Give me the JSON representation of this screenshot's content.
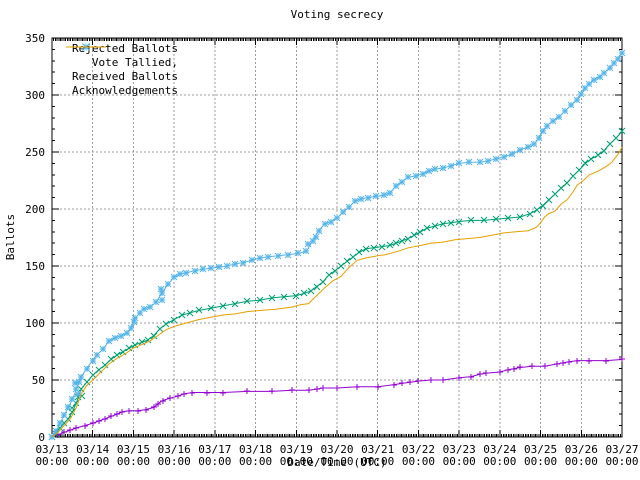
{
  "title": "Voting secrecy",
  "axes": {
    "ylabel": "Ballots",
    "xlabel": "Date/Time (UTC)",
    "x_tick_time": "00:00"
  },
  "colors": {
    "background": "#ffffff",
    "axis": "#000000",
    "grid": "#9e9e9e",
    "rejected": "#9400D3",
    "tallied": "#009E73",
    "received": "#56B4E9",
    "acknowledgements": "#E69F00"
  },
  "chart_data": {
    "type": "line",
    "title": "Voting secrecy",
    "xlabel": "Date/Time (UTC)",
    "ylabel": "Ballots",
    "xlim": [
      0,
      14
    ],
    "ylim": [
      0,
      350
    ],
    "grid": true,
    "legend_position": "top-left",
    "y_ticks": [
      0,
      50,
      100,
      150,
      200,
      250,
      300,
      350
    ],
    "x_tick_dates": [
      "03/13",
      "03/14",
      "03/15",
      "03/16",
      "03/17",
      "03/18",
      "03/19",
      "03/20",
      "03/21",
      "03/22",
      "03/23",
      "03/24",
      "03/25",
      "03/26",
      "03/27"
    ],
    "x_tick_time": "00:00",
    "x_unit": "days since 03/13 00:00 UTC",
    "series": [
      {
        "name": "Rejected Ballots",
        "color": "#9400D3",
        "marker": "plus",
        "points": [
          [
            0,
            0
          ],
          [
            0.15,
            2
          ],
          [
            0.3,
            4
          ],
          [
            0.45,
            6
          ],
          [
            0.6,
            8
          ],
          [
            0.8,
            10
          ],
          [
            1,
            12
          ],
          [
            1.15,
            14
          ],
          [
            1.3,
            16
          ],
          [
            1.45,
            18
          ],
          [
            1.6,
            20
          ],
          [
            1.72,
            22
          ],
          [
            1.9,
            23
          ],
          [
            2.1,
            23
          ],
          [
            2.3,
            24
          ],
          [
            2.5,
            26
          ],
          [
            2.6,
            29
          ],
          [
            2.72,
            32
          ],
          [
            2.9,
            34
          ],
          [
            3.1,
            36
          ],
          [
            3.25,
            38
          ],
          [
            3.45,
            39
          ],
          [
            3.8,
            39
          ],
          [
            4.2,
            39
          ],
          [
            4.8,
            40
          ],
          [
            5.4,
            40
          ],
          [
            5.9,
            41
          ],
          [
            6.3,
            41
          ],
          [
            6.5,
            42
          ],
          [
            6.65,
            43
          ],
          [
            7,
            43
          ],
          [
            7.5,
            44
          ],
          [
            8,
            44
          ],
          [
            8.4,
            46
          ],
          [
            8.6,
            47
          ],
          [
            8.8,
            48
          ],
          [
            9,
            49
          ],
          [
            9.3,
            50
          ],
          [
            9.6,
            50
          ],
          [
            10,
            52
          ],
          [
            10.3,
            53
          ],
          [
            10.5,
            55
          ],
          [
            10.65,
            56
          ],
          [
            11,
            57
          ],
          [
            11.2,
            59
          ],
          [
            11.35,
            60
          ],
          [
            11.5,
            61
          ],
          [
            11.8,
            62
          ],
          [
            12.1,
            62
          ],
          [
            12.4,
            64
          ],
          [
            12.55,
            65
          ],
          [
            12.7,
            66
          ],
          [
            12.9,
            67
          ],
          [
            13.2,
            67
          ],
          [
            13.6,
            67
          ],
          [
            14,
            68
          ]
        ]
      },
      {
        "name": "Vote Tallied,",
        "color": "#009E73",
        "marker": "cross",
        "points": [
          [
            0,
            0
          ],
          [
            0.1,
            3
          ],
          [
            0.2,
            8
          ],
          [
            0.3,
            12
          ],
          [
            0.4,
            16
          ],
          [
            0.5,
            22
          ],
          [
            0.6,
            30
          ],
          [
            0.72,
            42
          ],
          [
            0.85,
            48
          ],
          [
            1,
            54
          ],
          [
            1.15,
            59
          ],
          [
            1.3,
            63
          ],
          [
            1.45,
            68
          ],
          [
            1.6,
            72
          ],
          [
            1.75,
            75
          ],
          [
            1.9,
            78
          ],
          [
            2.05,
            81
          ],
          [
            2.2,
            83
          ],
          [
            2.35,
            85
          ],
          [
            2.5,
            89
          ],
          [
            2.65,
            95
          ],
          [
            2.8,
            99
          ],
          [
            3,
            103
          ],
          [
            3.2,
            107
          ],
          [
            3.4,
            109
          ],
          [
            3.6,
            111
          ],
          [
            3.9,
            113
          ],
          [
            4.2,
            115
          ],
          [
            4.5,
            117
          ],
          [
            4.8,
            119
          ],
          [
            5.1,
            120
          ],
          [
            5.4,
            122
          ],
          [
            5.7,
            123
          ],
          [
            6,
            124
          ],
          [
            6.2,
            126
          ],
          [
            6.35,
            128
          ],
          [
            6.5,
            132
          ],
          [
            6.65,
            136
          ],
          [
            6.8,
            142
          ],
          [
            6.95,
            146
          ],
          [
            7.1,
            150
          ],
          [
            7.25,
            154
          ],
          [
            7.4,
            158
          ],
          [
            7.55,
            162
          ],
          [
            7.7,
            165
          ],
          [
            7.9,
            166
          ],
          [
            8.1,
            167
          ],
          [
            8.3,
            168
          ],
          [
            8.45,
            170
          ],
          [
            8.6,
            172
          ],
          [
            8.75,
            174
          ],
          [
            8.9,
            177
          ],
          [
            9.05,
            180
          ],
          [
            9.2,
            183
          ],
          [
            9.4,
            185
          ],
          [
            9.6,
            187
          ],
          [
            9.8,
            188
          ],
          [
            10,
            189
          ],
          [
            10.3,
            190
          ],
          [
            10.6,
            190
          ],
          [
            10.9,
            191
          ],
          [
            11.2,
            192
          ],
          [
            11.5,
            193
          ],
          [
            11.75,
            196
          ],
          [
            11.9,
            199
          ],
          [
            12.05,
            203
          ],
          [
            12.2,
            208
          ],
          [
            12.35,
            213
          ],
          [
            12.5,
            218
          ],
          [
            12.65,
            223
          ],
          [
            12.8,
            229
          ],
          [
            12.95,
            234
          ],
          [
            13.1,
            240
          ],
          [
            13.25,
            244
          ],
          [
            13.4,
            247
          ],
          [
            13.55,
            251
          ],
          [
            13.7,
            257
          ],
          [
            13.85,
            262
          ],
          [
            14,
            268
          ]
        ]
      },
      {
        "name": "Received Ballots",
        "color": "#56B4E9",
        "marker": "star",
        "points": [
          [
            0,
            0
          ],
          [
            0.1,
            5
          ],
          [
            0.2,
            12
          ],
          [
            0.3,
            19
          ],
          [
            0.4,
            26
          ],
          [
            0.5,
            33
          ],
          [
            0.6,
            42
          ],
          [
            0.72,
            53
          ],
          [
            0.85,
            60
          ],
          [
            1,
            67
          ],
          [
            1.1,
            72
          ],
          [
            1.25,
            77
          ],
          [
            1.4,
            84
          ],
          [
            1.55,
            87
          ],
          [
            1.7,
            89
          ],
          [
            1.85,
            91
          ],
          [
            1.95,
            96
          ],
          [
            2.05,
            104
          ],
          [
            2.15,
            109
          ],
          [
            2.25,
            112
          ],
          [
            2.4,
            114
          ],
          [
            2.55,
            118
          ],
          [
            2.7,
            126
          ],
          [
            2.85,
            134
          ],
          [
            3,
            140
          ],
          [
            3.15,
            143
          ],
          [
            3.3,
            144
          ],
          [
            3.5,
            146
          ],
          [
            3.7,
            147
          ],
          [
            3.9,
            148
          ],
          [
            4.1,
            149
          ],
          [
            4.3,
            150
          ],
          [
            4.5,
            152
          ],
          [
            4.7,
            153
          ],
          [
            4.9,
            155
          ],
          [
            5.1,
            157
          ],
          [
            5.3,
            158
          ],
          [
            5.55,
            159
          ],
          [
            5.8,
            160
          ],
          [
            6.05,
            161
          ],
          [
            6.25,
            163
          ],
          [
            6.4,
            172
          ],
          [
            6.55,
            181
          ],
          [
            6.7,
            187
          ],
          [
            6.85,
            189
          ],
          [
            7,
            192
          ],
          [
            7.15,
            197
          ],
          [
            7.3,
            202
          ],
          [
            7.45,
            207
          ],
          [
            7.6,
            209
          ],
          [
            7.75,
            210
          ],
          [
            7.95,
            211
          ],
          [
            8.15,
            212
          ],
          [
            8.3,
            214
          ],
          [
            8.45,
            220
          ],
          [
            8.6,
            224
          ],
          [
            8.75,
            228
          ],
          [
            8.95,
            229
          ],
          [
            9.1,
            231
          ],
          [
            9.25,
            233
          ],
          [
            9.4,
            235
          ],
          [
            9.6,
            236
          ],
          [
            9.8,
            238
          ],
          [
            10,
            240
          ],
          [
            10.25,
            241
          ],
          [
            10.5,
            241
          ],
          [
            10.7,
            242
          ],
          [
            10.9,
            244
          ],
          [
            11.1,
            246
          ],
          [
            11.3,
            248
          ],
          [
            11.5,
            252
          ],
          [
            11.7,
            254
          ],
          [
            11.85,
            257
          ],
          [
            11.95,
            262
          ],
          [
            12.05,
            268
          ],
          [
            12.15,
            273
          ],
          [
            12.3,
            277
          ],
          [
            12.45,
            281
          ],
          [
            12.6,
            286
          ],
          [
            12.75,
            291
          ],
          [
            12.9,
            296
          ],
          [
            13,
            301
          ],
          [
            13.1,
            306
          ],
          [
            13.2,
            310
          ],
          [
            13.3,
            313
          ],
          [
            13.45,
            316
          ],
          [
            13.55,
            319
          ],
          [
            13.7,
            324
          ],
          [
            13.8,
            328
          ],
          [
            13.9,
            332
          ],
          [
            14,
            337
          ]
        ]
      },
      {
        "name": "Acknowledgements",
        "color": "#E69F00",
        "marker": "none",
        "points": [
          [
            0,
            0
          ],
          [
            0.15,
            4
          ],
          [
            0.3,
            10
          ],
          [
            0.45,
            16
          ],
          [
            0.6,
            26
          ],
          [
            0.72,
            38
          ],
          [
            0.85,
            45
          ],
          [
            1,
            50
          ],
          [
            1.2,
            57
          ],
          [
            1.4,
            64
          ],
          [
            1.6,
            69
          ],
          [
            1.8,
            73
          ],
          [
            2,
            78
          ],
          [
            2.2,
            81
          ],
          [
            2.4,
            84
          ],
          [
            2.6,
            89
          ],
          [
            2.8,
            94
          ],
          [
            3,
            97
          ],
          [
            3.3,
            100
          ],
          [
            3.6,
            103
          ],
          [
            3.9,
            105
          ],
          [
            4.2,
            107
          ],
          [
            4.5,
            108
          ],
          [
            4.8,
            110
          ],
          [
            5.1,
            111
          ],
          [
            5.5,
            112
          ],
          [
            5.9,
            114
          ],
          [
            6.1,
            116
          ],
          [
            6.3,
            117
          ],
          [
            6.5,
            124
          ],
          [
            6.7,
            131
          ],
          [
            6.9,
            137
          ],
          [
            7.1,
            141
          ],
          [
            7.3,
            149
          ],
          [
            7.5,
            155
          ],
          [
            7.7,
            157
          ],
          [
            8,
            159
          ],
          [
            8.2,
            160
          ],
          [
            8.5,
            163
          ],
          [
            8.75,
            166
          ],
          [
            9.05,
            168
          ],
          [
            9.3,
            170
          ],
          [
            9.6,
            171
          ],
          [
            9.9,
            173
          ],
          [
            10.2,
            174
          ],
          [
            10.5,
            175
          ],
          [
            10.8,
            177
          ],
          [
            11.1,
            179
          ],
          [
            11.4,
            180
          ],
          [
            11.7,
            181
          ],
          [
            11.9,
            184
          ],
          [
            12,
            188
          ],
          [
            12.1,
            193
          ],
          [
            12.2,
            196
          ],
          [
            12.35,
            198
          ],
          [
            12.5,
            204
          ],
          [
            12.65,
            208
          ],
          [
            12.8,
            215
          ],
          [
            12.9,
            221
          ],
          [
            13.05,
            225
          ],
          [
            13.2,
            230
          ],
          [
            13.4,
            233
          ],
          [
            13.6,
            237
          ],
          [
            13.75,
            241
          ],
          [
            13.9,
            248
          ],
          [
            14,
            254
          ]
        ]
      }
    ]
  }
}
